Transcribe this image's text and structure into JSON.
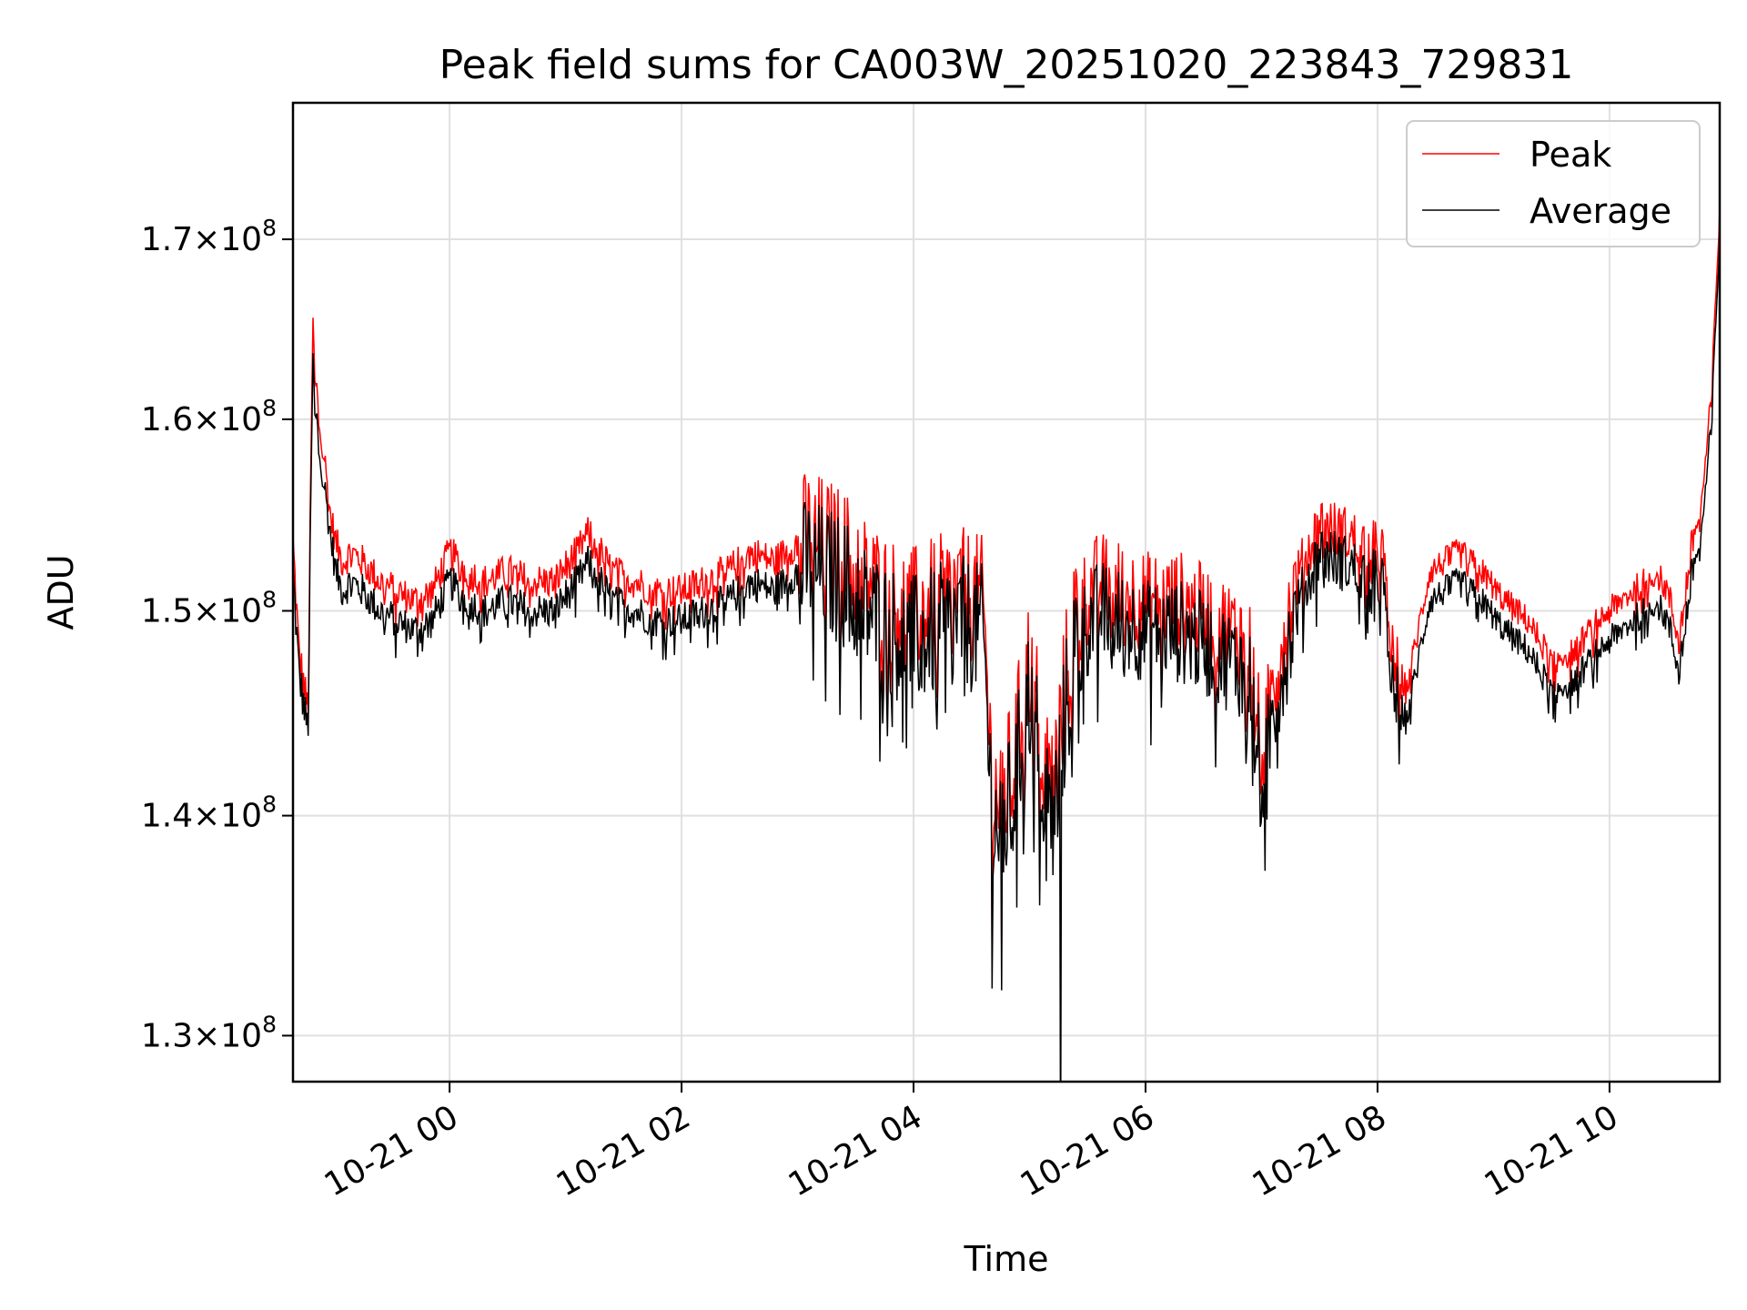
{
  "chart_data": {
    "type": "line",
    "title": "Peak field sums for CA003W_20251020_223843_729831",
    "xlabel": "Time",
    "ylabel": "ADU",
    "yscale": "log",
    "grid": true,
    "legend_position": "top-right",
    "colors": {
      "peak": "#ff0000",
      "average": "#000000",
      "grid": "#e0e0e0",
      "axes": "#000000"
    },
    "xlim_hours": [
      -1.35,
      10.95
    ],
    "ylim": [
      128000000,
      178000000
    ],
    "x_ticks": [
      {
        "value": 0,
        "label": "10-21 00"
      },
      {
        "value": 2,
        "label": "10-21 02"
      },
      {
        "value": 4,
        "label": "10-21 04"
      },
      {
        "value": 6,
        "label": "10-21 06"
      },
      {
        "value": 8,
        "label": "10-21 08"
      },
      {
        "value": 10,
        "label": "10-21 10"
      }
    ],
    "y_ticks": [
      {
        "value": 130000000,
        "mantissa": "1.3",
        "exponent": "8"
      },
      {
        "value": 140000000,
        "mantissa": "1.4",
        "exponent": "8"
      },
      {
        "value": 150000000,
        "mantissa": "1.5",
        "exponent": "8"
      },
      {
        "value": 160000000,
        "mantissa": "1.6",
        "exponent": "8"
      },
      {
        "value": 170000000,
        "mantissa": "1.7",
        "exponent": "8"
      }
    ],
    "series_key_x_hours": [
      -1.35,
      -1.3,
      -1.25,
      -1.22,
      -1.18,
      -1.13,
      -1.08,
      -1.03,
      -0.98,
      -0.92,
      -0.85,
      -0.75,
      -0.6,
      -0.45,
      -0.3,
      -0.15,
      0.0,
      0.15,
      0.3,
      0.5,
      0.7,
      0.9,
      1.1,
      1.2,
      1.4,
      1.6,
      1.8,
      2.0,
      2.2,
      2.4,
      2.6,
      2.8,
      3.0,
      3.1,
      3.25,
      3.4,
      3.6,
      3.8,
      4.0,
      4.2,
      4.4,
      4.6,
      4.68,
      4.75,
      4.85,
      5.0,
      5.1,
      5.2,
      5.3,
      5.4,
      5.6,
      5.8,
      6.0,
      6.3,
      6.6,
      6.9,
      7.0,
      7.1,
      7.3,
      7.5,
      7.7,
      7.85,
      8.05,
      8.1,
      8.25,
      8.45,
      8.7,
      8.9,
      9.1,
      9.3,
      9.5,
      9.7,
      9.9,
      10.1,
      10.2,
      10.4,
      10.5,
      10.6,
      10.7,
      10.8,
      10.88,
      10.95
    ],
    "series": [
      {
        "name": "Peak",
        "values": [
          153500000,
          148000000,
          146000000,
          145000000,
          165000000,
          160000000,
          158000000,
          155000000,
          153500000,
          152500000,
          153000000,
          152500000,
          151500000,
          151000000,
          150500000,
          151000000,
          153000000,
          152000000,
          151500000,
          152000000,
          151500000,
          151500000,
          153000000,
          154000000,
          152000000,
          151500000,
          151000000,
          151000000,
          151500000,
          152000000,
          153000000,
          152500000,
          153500000,
          154000000,
          153500000,
          153000000,
          151500000,
          150500000,
          150000000,
          150500000,
          151000000,
          150500000,
          141000000,
          141000000,
          142000000,
          147500000,
          144000000,
          141000000,
          146000000,
          150000000,
          151500000,
          151000000,
          150500000,
          150500000,
          149500000,
          148500000,
          143000000,
          146500000,
          151500000,
          154500000,
          154000000,
          153500000,
          153000000,
          148500000,
          146000000,
          152000000,
          153000000,
          152000000,
          150500000,
          149500000,
          147500000,
          148000000,
          149500000,
          150500000,
          151000000,
          152000000,
          151000000,
          148500000,
          153000000,
          156000000,
          161000000,
          172000000
        ]
      },
      {
        "name": "Average",
        "values": [
          152000000,
          147000000,
          145000000,
          144000000,
          163000000,
          158500000,
          156500000,
          154000000,
          152000000,
          151000000,
          151500000,
          151000000,
          150000000,
          149500000,
          149000000,
          149500000,
          151500000,
          150500000,
          150000000,
          150500000,
          150000000,
          150000000,
          151500000,
          152500000,
          150500000,
          150000000,
          149500000,
          149500000,
          150000000,
          150500000,
          151500000,
          151000000,
          152000000,
          152500000,
          152000000,
          151500000,
          150000000,
          149000000,
          148500000,
          149000000,
          149500000,
          149000000,
          139500000,
          139500000,
          140500000,
          146000000,
          142500000,
          139500000,
          144500000,
          148500000,
          150000000,
          149500000,
          149000000,
          149000000,
          148000000,
          147000000,
          141500000,
          145000000,
          150000000,
          153000000,
          152500000,
          152000000,
          151500000,
          147000000,
          144500000,
          150500000,
          151500000,
          150500000,
          149000000,
          148000000,
          146000000,
          146500000,
          148000000,
          149000000,
          149500000,
          150500000,
          149500000,
          147000000,
          151500000,
          154500000,
          159500000,
          170500000
        ]
      }
    ]
  }
}
